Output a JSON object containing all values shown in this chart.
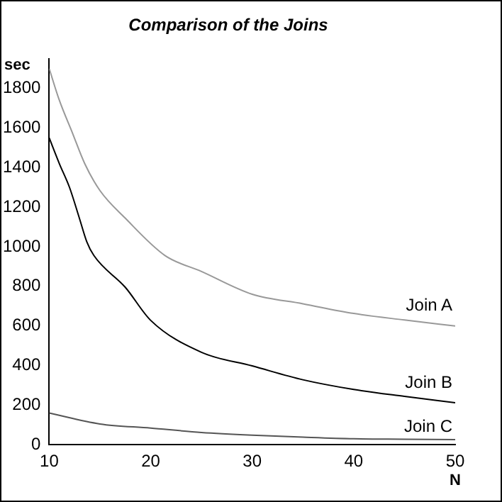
{
  "chart_data": {
    "type": "line",
    "title": "Comparison of the Joins",
    "xlabel": "N",
    "ylabel": "sec",
    "xlim": [
      10,
      50
    ],
    "xticks": [
      10,
      20,
      30,
      40,
      50
    ],
    "ylim": [
      0,
      1950
    ],
    "yticks": [
      0,
      200,
      400,
      600,
      800,
      1000,
      1200,
      1400,
      1600,
      1800
    ],
    "grid": false,
    "legend": false,
    "marker": "none",
    "line_style": "solid",
    "series": [
      {
        "name": "Join A",
        "color": "#999999",
        "x": [
          10,
          11,
          12.25,
          13.5,
          15,
          17.5,
          21.4,
          25,
          30,
          35,
          40,
          45,
          50
        ],
        "values": [
          1900,
          1740,
          1580,
          1420,
          1284,
          1144,
          956,
          875,
          760,
          712,
          663,
          630,
          600
        ]
      },
      {
        "name": "Join B",
        "color": "#000000",
        "x": [
          10,
          11,
          12,
          13,
          13.7,
          14.4,
          17.5,
          20,
          25,
          30,
          35,
          40,
          45,
          50
        ],
        "values": [
          1550,
          1420,
          1300,
          1140,
          1026,
          956,
          795,
          628,
          467,
          398,
          328,
          279,
          244,
          212
        ]
      },
      {
        "name": "Join C",
        "color": "#555555",
        "x": [
          10,
          15,
          20,
          25,
          30,
          35,
          40,
          45,
          50
        ],
        "values": [
          160,
          105,
          84,
          62,
          48,
          38,
          30,
          28,
          26
        ]
      }
    ]
  }
}
